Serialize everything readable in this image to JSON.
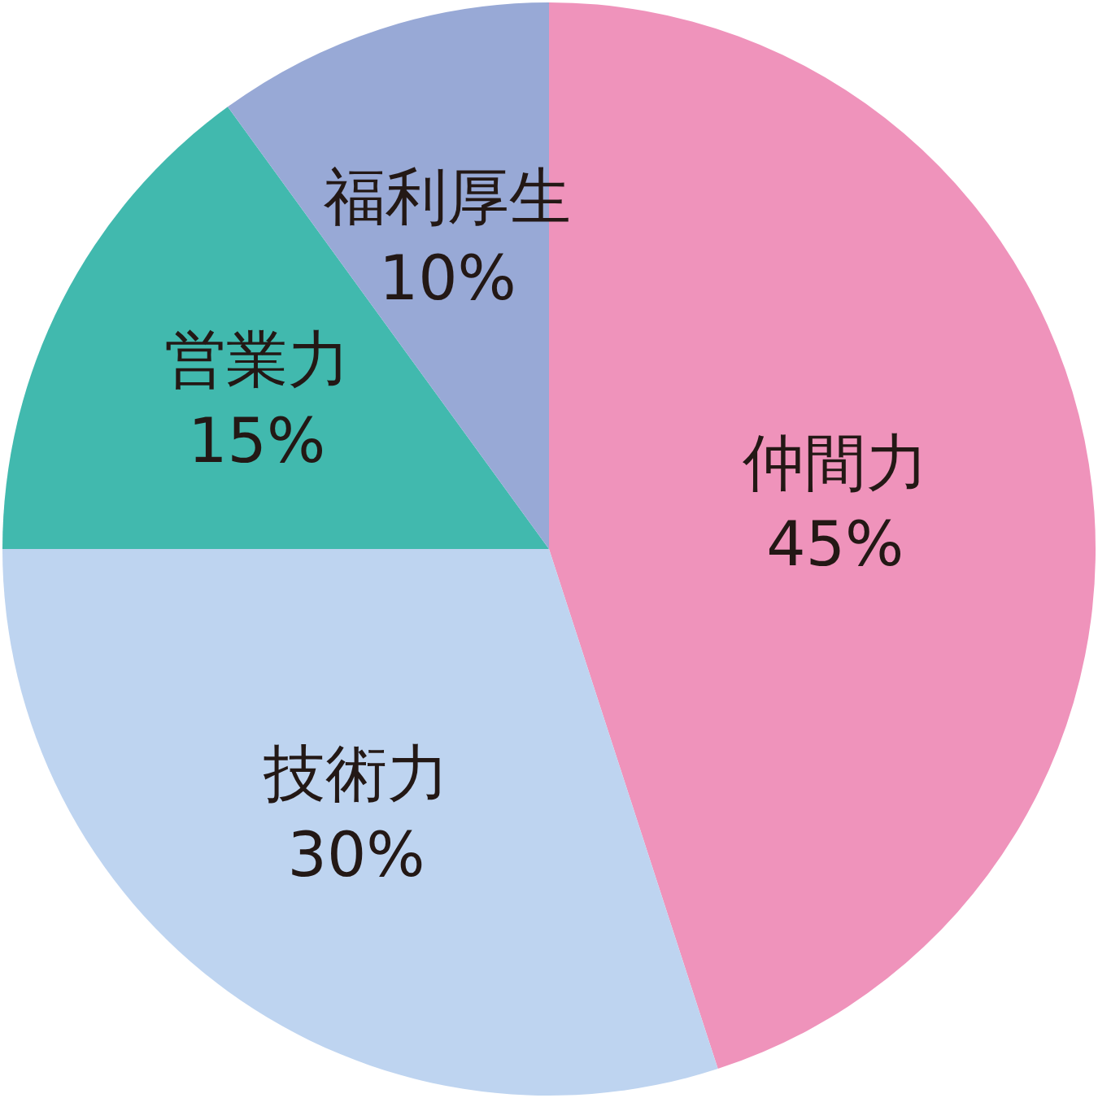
{
  "chart_data": {
    "type": "pie",
    "categories": [
      "仲間力",
      "技術力",
      "営業力",
      "福利厚生"
    ],
    "values": [
      45,
      30,
      15,
      10
    ],
    "value_labels": [
      "45%",
      "30%",
      "15%",
      "10%"
    ],
    "colors": [
      "#ef93bb",
      "#bed4f0",
      "#41b9ae",
      "#98a9d6"
    ]
  }
}
